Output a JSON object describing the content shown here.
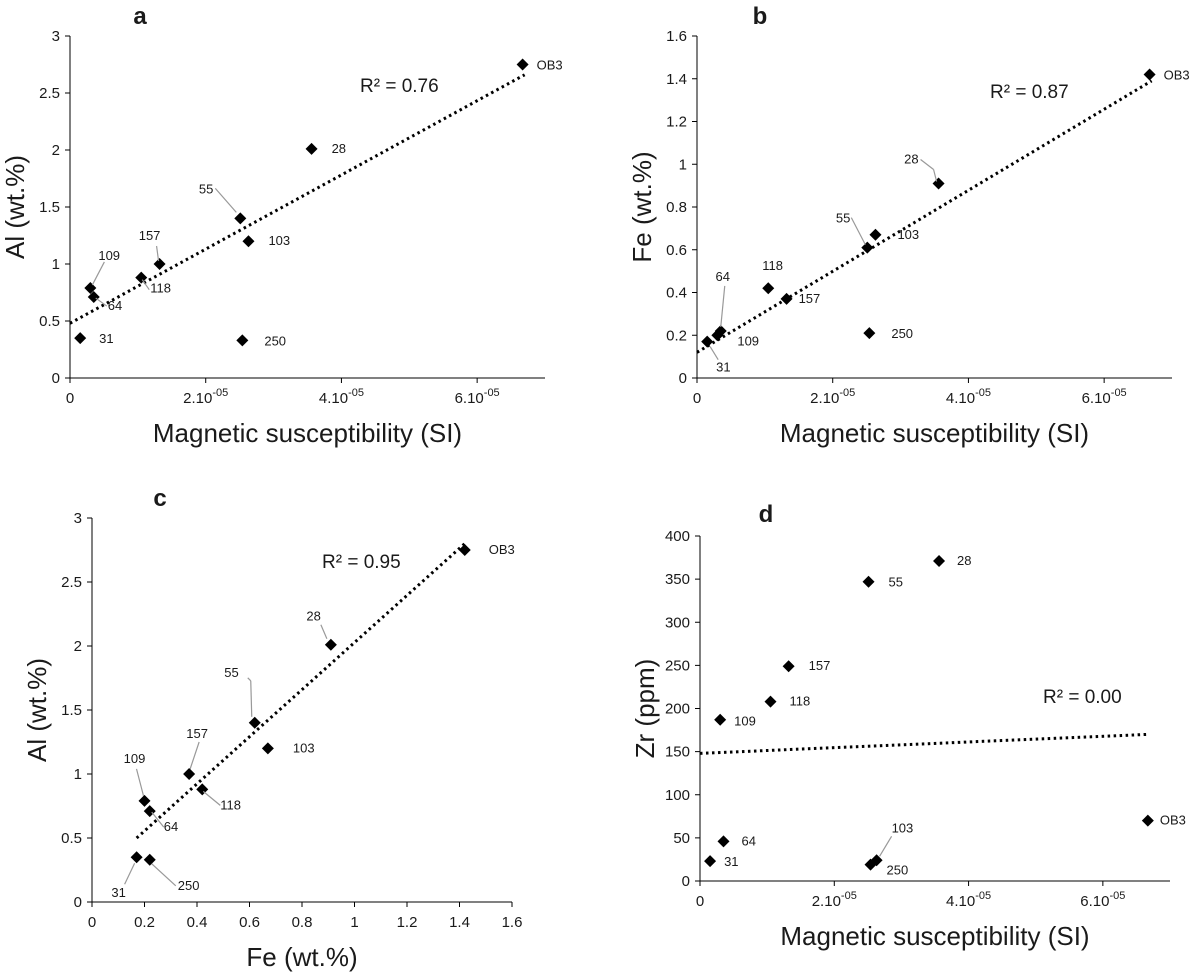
{
  "chart_data": [
    {
      "type": "scatter",
      "panel": "a",
      "xlabel": "Magnetic susceptibility (SI)",
      "ylabel": "Al (wt.%)",
      "xlim": [
        0,
        7e-05
      ],
      "ylim": [
        0,
        3
      ],
      "x_ticks": [
        {
          "value": 0,
          "base": "0",
          "exp": ""
        },
        {
          "value": 2e-05,
          "base": "2.10",
          "exp": "-05"
        },
        {
          "value": 4e-05,
          "base": "4.10",
          "exp": "-05"
        },
        {
          "value": 6e-05,
          "base": "6.10",
          "exp": "-05"
        }
      ],
      "y_ticks": [
        {
          "value": 0,
          "label": "0"
        },
        {
          "value": 0.5,
          "label": "0.5"
        },
        {
          "value": 1,
          "label": "1"
        },
        {
          "value": 1.5,
          "label": "1.5"
        },
        {
          "value": 2,
          "label": "2"
        },
        {
          "value": 2.5,
          "label": "2.5"
        },
        {
          "value": 3,
          "label": "3"
        }
      ],
      "r2": "R² = 0.76",
      "trendline": {
        "x": [
          0,
          6.7e-05
        ],
        "y": [
          0.48,
          2.66
        ]
      },
      "points": [
        {
          "label": "OB3",
          "x": 6.67e-05,
          "y": 2.75
        },
        {
          "label": "28",
          "x": 3.56e-05,
          "y": 2.01
        },
        {
          "label": "55",
          "x": 2.51e-05,
          "y": 1.4
        },
        {
          "label": "103",
          "x": 2.63e-05,
          "y": 1.2
        },
        {
          "label": "157",
          "x": 1.32e-05,
          "y": 1.0
        },
        {
          "label": "118",
          "x": 1.05e-05,
          "y": 0.88
        },
        {
          "label": "109",
          "x": 3e-06,
          "y": 0.79
        },
        {
          "label": "64",
          "x": 3.5e-06,
          "y": 0.71
        },
        {
          "label": "31",
          "x": 1.5e-06,
          "y": 0.35
        },
        {
          "label": "250",
          "x": 2.54e-05,
          "y": 0.33
        }
      ]
    },
    {
      "type": "scatter",
      "panel": "b",
      "xlabel": "Magnetic susceptibility (SI)",
      "ylabel": "Fe (wt.%)",
      "xlim": [
        0,
        7e-05
      ],
      "ylim": [
        0,
        1.6
      ],
      "x_ticks": [
        {
          "value": 0,
          "base": "0",
          "exp": ""
        },
        {
          "value": 2e-05,
          "base": "2.10",
          "exp": "-05"
        },
        {
          "value": 4e-05,
          "base": "4.10",
          "exp": "-05"
        },
        {
          "value": 6e-05,
          "base": "6.10",
          "exp": "-05"
        }
      ],
      "y_ticks": [
        {
          "value": 0,
          "label": "0"
        },
        {
          "value": 0.2,
          "label": "0.2"
        },
        {
          "value": 0.4,
          "label": "0.4"
        },
        {
          "value": 0.6,
          "label": "0.6"
        },
        {
          "value": 0.8,
          "label": "0.8"
        },
        {
          "value": 1,
          "label": "1"
        },
        {
          "value": 1.2,
          "label": "1.2"
        },
        {
          "value": 1.4,
          "label": "1.4"
        },
        {
          "value": 1.6,
          "label": "1.6"
        }
      ],
      "r2": "R² = 0.87",
      "trendline": {
        "x": [
          0,
          6.7e-05
        ],
        "y": [
          0.12,
          1.39
        ]
      },
      "points": [
        {
          "label": "OB3",
          "x": 6.67e-05,
          "y": 1.42
        },
        {
          "label": "28",
          "x": 3.56e-05,
          "y": 0.91
        },
        {
          "label": "55",
          "x": 2.51e-05,
          "y": 0.61
        },
        {
          "label": "103",
          "x": 2.63e-05,
          "y": 0.67
        },
        {
          "label": "118",
          "x": 1.05e-05,
          "y": 0.42
        },
        {
          "label": "157",
          "x": 1.32e-05,
          "y": 0.37
        },
        {
          "label": "64",
          "x": 3.5e-06,
          "y": 0.22
        },
        {
          "label": "109",
          "x": 3e-06,
          "y": 0.2
        },
        {
          "label": "31",
          "x": 1.5e-06,
          "y": 0.17
        },
        {
          "label": "250",
          "x": 2.54e-05,
          "y": 0.21
        }
      ]
    },
    {
      "type": "scatter",
      "panel": "c",
      "xlabel": "Fe (wt.%)",
      "ylabel": "Al (wt.%)",
      "xlim": [
        0,
        1.6
      ],
      "ylim": [
        0,
        3
      ],
      "x_ticks": [
        {
          "value": 0,
          "base": "0",
          "exp": ""
        },
        {
          "value": 0.2,
          "base": "0.2",
          "exp": ""
        },
        {
          "value": 0.4,
          "base": "0.4",
          "exp": ""
        },
        {
          "value": 0.6,
          "base": "0.6",
          "exp": ""
        },
        {
          "value": 0.8,
          "base": "0.8",
          "exp": ""
        },
        {
          "value": 1,
          "base": "1",
          "exp": ""
        },
        {
          "value": 1.2,
          "base": "1.2",
          "exp": ""
        },
        {
          "value": 1.4,
          "base": "1.4",
          "exp": ""
        },
        {
          "value": 1.6,
          "base": "1.6",
          "exp": ""
        }
      ],
      "y_ticks": [
        {
          "value": 0,
          "label": "0"
        },
        {
          "value": 0.5,
          "label": "0.5"
        },
        {
          "value": 1,
          "label": "1"
        },
        {
          "value": 1.5,
          "label": "1.5"
        },
        {
          "value": 2,
          "label": "2"
        },
        {
          "value": 2.5,
          "label": "2.5"
        },
        {
          "value": 3,
          "label": "3"
        }
      ],
      "r2": "R² = 0.95",
      "trendline": {
        "x": [
          0.17,
          1.42
        ],
        "y": [
          0.5,
          2.8
        ]
      },
      "points": [
        {
          "label": "OB3",
          "x": 1.42,
          "y": 2.75
        },
        {
          "label": "28",
          "x": 0.91,
          "y": 2.01
        },
        {
          "label": "55",
          "x": 0.62,
          "y": 1.4
        },
        {
          "label": "103",
          "x": 0.67,
          "y": 1.2
        },
        {
          "label": "157",
          "x": 0.37,
          "y": 1.0
        },
        {
          "label": "118",
          "x": 0.42,
          "y": 0.88
        },
        {
          "label": "109",
          "x": 0.2,
          "y": 0.79
        },
        {
          "label": "64",
          "x": 0.22,
          "y": 0.71
        },
        {
          "label": "31",
          "x": 0.17,
          "y": 0.35
        },
        {
          "label": "250",
          "x": 0.22,
          "y": 0.33
        }
      ]
    },
    {
      "type": "scatter",
      "panel": "d",
      "xlabel": "Magnetic susceptibility (SI)",
      "ylabel": "Zr (ppm)",
      "xlim": [
        0,
        7e-05
      ],
      "ylim": [
        0,
        400
      ],
      "x_ticks": [
        {
          "value": 0,
          "base": "0",
          "exp": ""
        },
        {
          "value": 2e-05,
          "base": "2.10",
          "exp": "-05"
        },
        {
          "value": 4e-05,
          "base": "4.10",
          "exp": "-05"
        },
        {
          "value": 6e-05,
          "base": "6.10",
          "exp": "-05"
        }
      ],
      "y_ticks": [
        {
          "value": 0,
          "label": "0"
        },
        {
          "value": 50,
          "label": "50"
        },
        {
          "value": 100,
          "label": "100"
        },
        {
          "value": 150,
          "label": "150"
        },
        {
          "value": 200,
          "label": "200"
        },
        {
          "value": 250,
          "label": "250"
        },
        {
          "value": 300,
          "label": "300"
        },
        {
          "value": 350,
          "label": "350"
        },
        {
          "value": 400,
          "label": "400"
        }
      ],
      "r2": "R² = 0.00",
      "trendline": {
        "x": [
          0,
          6.67e-05
        ],
        "y": [
          148,
          170
        ]
      },
      "points": [
        {
          "label": "28",
          "x": 3.56e-05,
          "y": 371
        },
        {
          "label": "55",
          "x": 2.51e-05,
          "y": 347
        },
        {
          "label": "157",
          "x": 1.32e-05,
          "y": 249
        },
        {
          "label": "118",
          "x": 1.05e-05,
          "y": 208
        },
        {
          "label": "109",
          "x": 3e-06,
          "y": 187
        },
        {
          "label": "OB3",
          "x": 6.67e-05,
          "y": 70
        },
        {
          "label": "64",
          "x": 3.5e-06,
          "y": 46
        },
        {
          "label": "31",
          "x": 1.5e-06,
          "y": 23
        },
        {
          "label": "103",
          "x": 2.63e-05,
          "y": 24
        },
        {
          "label": "250",
          "x": 2.54e-05,
          "y": 19
        }
      ]
    }
  ]
}
